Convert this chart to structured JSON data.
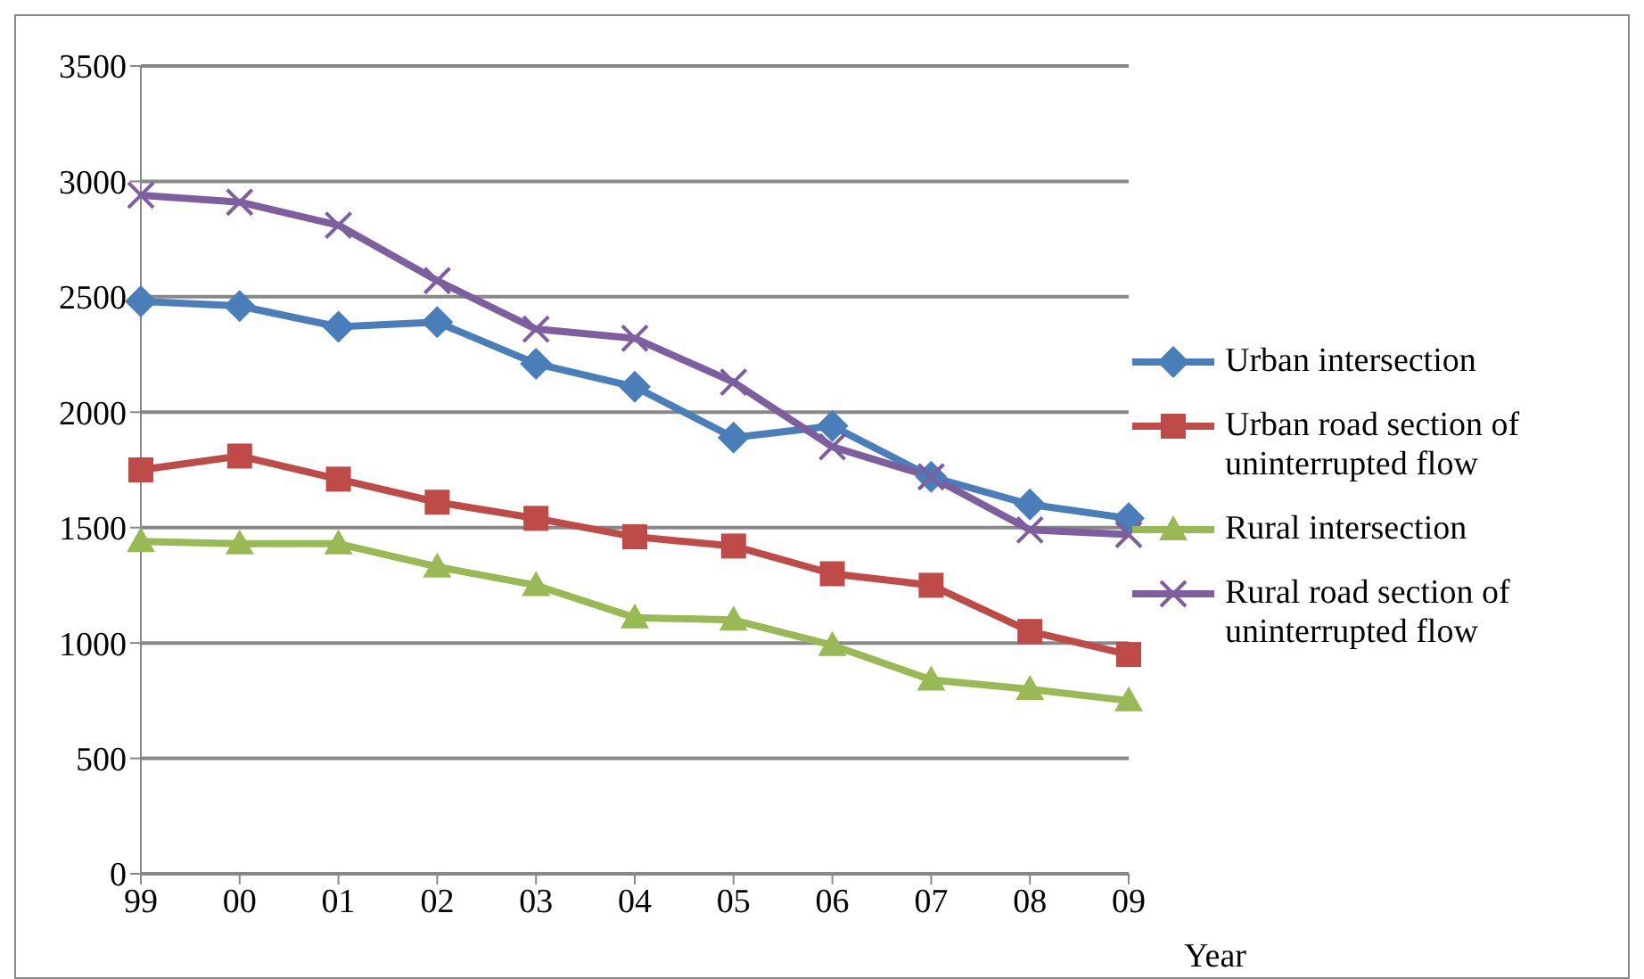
{
  "chart_data": {
    "type": "line",
    "xlabel": "Year",
    "categories": [
      "99",
      "00",
      "01",
      "02",
      "03",
      "04",
      "05",
      "06",
      "07",
      "08",
      "09"
    ],
    "series": [
      {
        "name": "Urban intersection",
        "color": "#4a7ebb",
        "marker": "diamond",
        "values": [
          2480,
          2460,
          2370,
          2390,
          2210,
          2110,
          1890,
          1940,
          1720,
          1600,
          1540
        ]
      },
      {
        "name": "Urban road section of uninterrupted flow",
        "color": "#be4b48",
        "marker": "square",
        "values": [
          1750,
          1810,
          1710,
          1610,
          1540,
          1460,
          1420,
          1300,
          1250,
          1050,
          950
        ]
      },
      {
        "name": "Rural intersection",
        "color": "#98b954",
        "marker": "triangle",
        "values": [
          1440,
          1430,
          1430,
          1330,
          1250,
          1110,
          1100,
          990,
          840,
          800,
          750
        ]
      },
      {
        "name": "Rural road section of uninterrupted flow",
        "color": "#7d5fa0",
        "marker": "cross",
        "values": [
          2940,
          2910,
          2810,
          2570,
          2360,
          2320,
          2130,
          1850,
          1720,
          1490,
          1470
        ]
      }
    ],
    "ylim": [
      0,
      3500
    ],
    "yticks": [
      0,
      500,
      1000,
      1500,
      2000,
      2500,
      3000,
      3500
    ],
    "grid": "y",
    "legend": "right"
  }
}
